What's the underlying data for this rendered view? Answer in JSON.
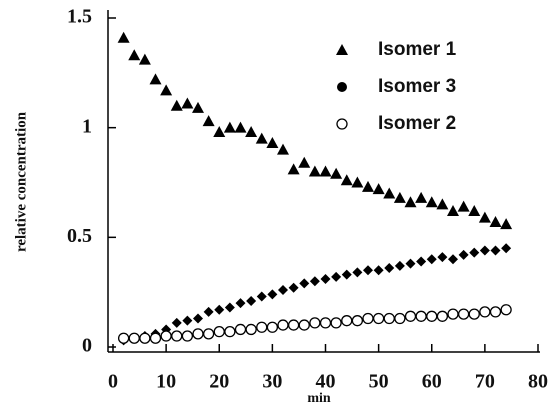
{
  "chart_data": {
    "type": "scatter",
    "xlabel": "min",
    "ylabel": "relative concentration",
    "x": [
      2,
      4,
      6,
      8,
      10,
      12,
      14,
      16,
      18,
      20,
      22,
      24,
      26,
      28,
      30,
      32,
      34,
      36,
      38,
      40,
      42,
      44,
      46,
      48,
      50,
      52,
      54,
      56,
      58,
      60,
      62,
      64,
      66,
      68,
      70,
      72,
      74
    ],
    "series": [
      {
        "name": "Isomer 1",
        "color": "#000000",
        "marker": "triangle",
        "legend_marker": "triangle",
        "values": [
          1.41,
          1.33,
          1.31,
          1.22,
          1.17,
          1.1,
          1.11,
          1.09,
          1.03,
          0.98,
          1.0,
          1.0,
          0.98,
          0.95,
          0.93,
          0.9,
          0.81,
          0.84,
          0.8,
          0.8,
          0.79,
          0.76,
          0.75,
          0.73,
          0.72,
          0.7,
          0.68,
          0.66,
          0.68,
          0.66,
          0.65,
          0.62,
          0.64,
          0.62,
          0.59,
          0.57,
          0.56
        ]
      },
      {
        "name": "Isomer 3",
        "color": "#000000",
        "marker": "diamond",
        "legend_marker": "circle",
        "values": [
          0.03,
          0.04,
          0.05,
          0.06,
          0.08,
          0.11,
          0.12,
          0.13,
          0.16,
          0.17,
          0.18,
          0.2,
          0.21,
          0.23,
          0.24,
          0.26,
          0.27,
          0.29,
          0.3,
          0.31,
          0.32,
          0.33,
          0.34,
          0.35,
          0.35,
          0.36,
          0.37,
          0.38,
          0.39,
          0.4,
          0.41,
          0.4,
          0.42,
          0.43,
          0.44,
          0.44,
          0.45
        ]
      },
      {
        "name": "Isomer 2",
        "color": "#000000",
        "marker": "circle-open",
        "legend_marker": "circle-open",
        "values": [
          0.04,
          0.04,
          0.04,
          0.04,
          0.05,
          0.05,
          0.05,
          0.06,
          0.06,
          0.07,
          0.07,
          0.08,
          0.08,
          0.09,
          0.09,
          0.1,
          0.1,
          0.1,
          0.11,
          0.11,
          0.11,
          0.12,
          0.12,
          0.13,
          0.13,
          0.13,
          0.13,
          0.14,
          0.14,
          0.14,
          0.14,
          0.15,
          0.15,
          0.15,
          0.16,
          0.16,
          0.17
        ]
      }
    ],
    "xlim": [
      0,
      80
    ],
    "xticks": [
      0,
      10,
      20,
      30,
      40,
      50,
      60,
      70,
      80
    ],
    "ylim": [
      0,
      1.5
    ],
    "yticks": [
      0,
      0.5,
      1,
      1.5
    ],
    "grid": false,
    "legend": "upper right"
  }
}
